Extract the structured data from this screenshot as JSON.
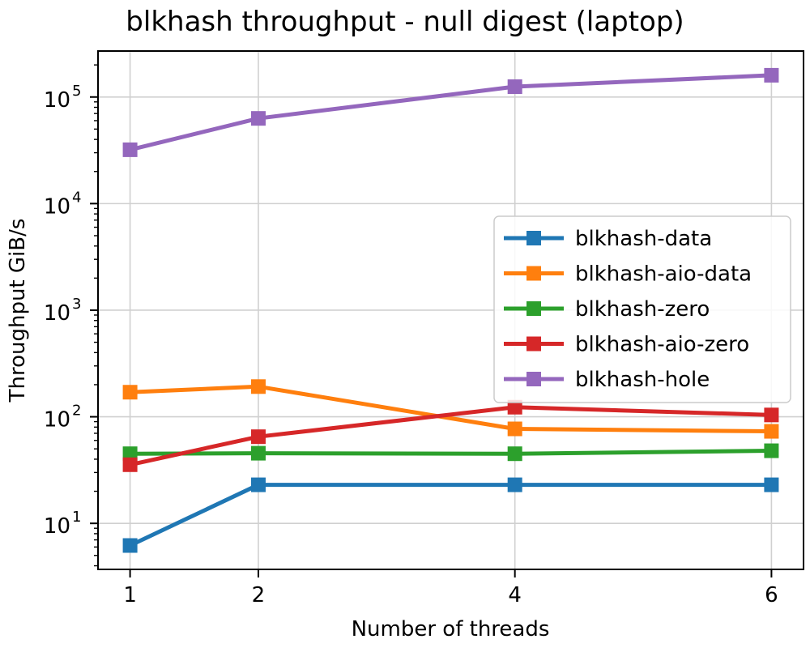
{
  "chart_data": {
    "type": "line",
    "title": "blkhash throughput - null digest (laptop)",
    "xlabel": "Number of threads",
    "ylabel": "Throughput GiB/s",
    "x": [
      1,
      2,
      4,
      6
    ],
    "x_ticks": [
      "1",
      "2",
      "4",
      "6"
    ],
    "xlim": [
      0.75,
      6.25
    ],
    "y_scale": "log",
    "ylim": [
      3.7,
      270000
    ],
    "y_ticks": [
      {
        "value": 10,
        "base": "10",
        "exp": "1"
      },
      {
        "value": 100,
        "base": "10",
        "exp": "2"
      },
      {
        "value": 1000,
        "base": "10",
        "exp": "3"
      },
      {
        "value": 10000,
        "base": "10",
        "exp": "4"
      },
      {
        "value": 100000,
        "base": "10",
        "exp": "5"
      }
    ],
    "grid": true,
    "marker": "square",
    "legend_position": "center-right",
    "series": [
      {
        "name": "blkhash-data",
        "color": "#1f77b4",
        "values": [
          6.2,
          23,
          23,
          23
        ]
      },
      {
        "name": "blkhash-aio-data",
        "color": "#ff7f0e",
        "values": [
          170,
          192,
          77,
          73
        ]
      },
      {
        "name": "blkhash-zero",
        "color": "#2ca02c",
        "values": [
          45,
          45.5,
          45,
          48
        ]
      },
      {
        "name": "blkhash-aio-zero",
        "color": "#d62728",
        "values": [
          35.5,
          65,
          123,
          104
        ]
      },
      {
        "name": "blkhash-hole",
        "color": "#9467bd",
        "values": [
          32000,
          63000,
          125000,
          160000
        ]
      }
    ]
  }
}
